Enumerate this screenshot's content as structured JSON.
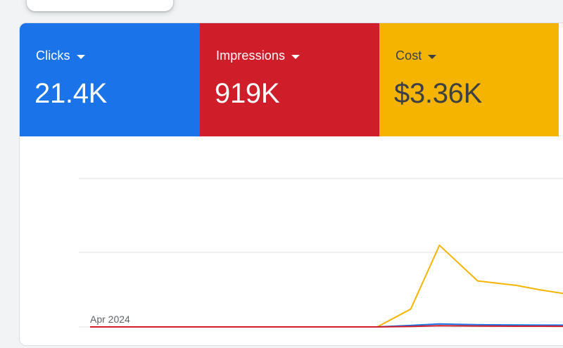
{
  "metrics": {
    "clicks": {
      "label": "Clicks",
      "value": "21.4K",
      "color": "#1a73e8"
    },
    "impressions": {
      "label": "Impressions",
      "value": "919K",
      "color": "#d01d2a"
    },
    "cost": {
      "label": "Cost",
      "value": "$3.36K",
      "color": "#f4b400"
    }
  },
  "chart_data": {
    "type": "line",
    "x_tick_labels": [
      "Apr 2024"
    ],
    "grid": true,
    "y_ticks_shown": false,
    "x_range": [
      0,
      100
    ],
    "y_range": [
      0,
      100
    ],
    "series": [
      {
        "name": "Cost",
        "color": "#f4b400",
        "points": [
          [
            0,
            0
          ],
          [
            60,
            0
          ],
          [
            67,
            12
          ],
          [
            73,
            55
          ],
          [
            81,
            31
          ],
          [
            89,
            28
          ],
          [
            94,
            25
          ],
          [
            100,
            22
          ]
        ]
      },
      {
        "name": "Clicks",
        "color": "#1a73e8",
        "points": [
          [
            0,
            0
          ],
          [
            60,
            0
          ],
          [
            67,
            1
          ],
          [
            73,
            2
          ],
          [
            81,
            1.5
          ],
          [
            89,
            1.3
          ],
          [
            100,
            1.2
          ]
        ]
      },
      {
        "name": "Impressions",
        "color": "#d01d2a",
        "points": [
          [
            0,
            0
          ],
          [
            60,
            0
          ],
          [
            67,
            0.3
          ],
          [
            73,
            0.8
          ],
          [
            81,
            0.6
          ],
          [
            89,
            0.5
          ],
          [
            100,
            0.4
          ]
        ]
      }
    ]
  }
}
